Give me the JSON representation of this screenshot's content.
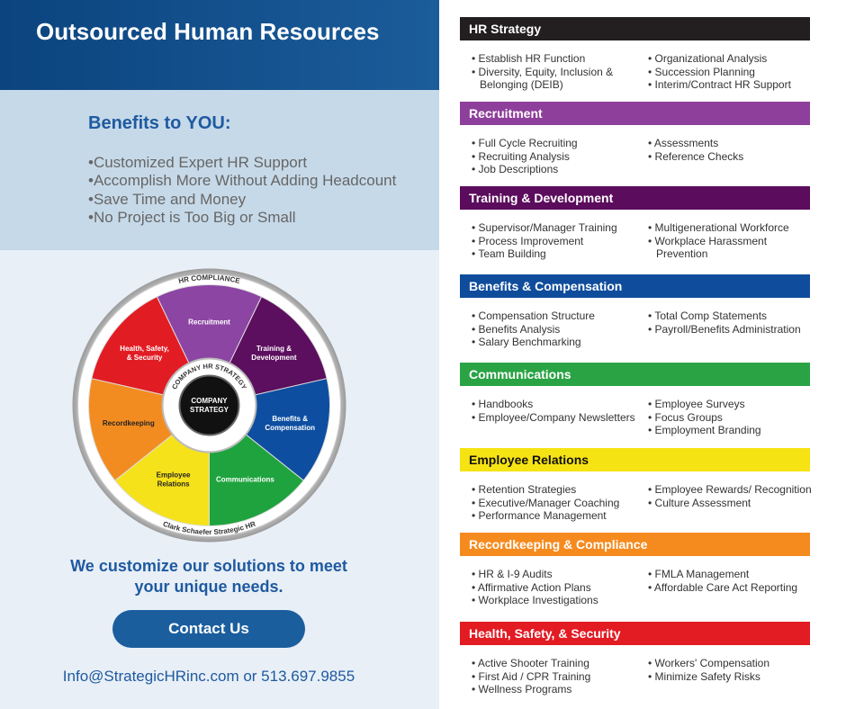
{
  "header": {
    "title": "Outsourced Human Resources"
  },
  "benefits": {
    "title": "Benefits to YOU:",
    "items": [
      "Customized Expert HR Support",
      "Accomplish More Without Adding Headcount",
      "Save Time and Money",
      "No Project is Too Big or Small"
    ]
  },
  "wheel": {
    "outer_top": "HR COMPLIANCE",
    "outer_bottom": "Clark Schaefer Strategic HR",
    "inner_ring": "COMPANY HR STRATEGY",
    "center": [
      "COMPANY",
      "STRATEGY"
    ],
    "segments": [
      {
        "lines": [
          "Recruitment"
        ]
      },
      {
        "lines": [
          "Training &",
          "Development"
        ]
      },
      {
        "lines": [
          "Benefits &",
          "Compensation"
        ]
      },
      {
        "lines": [
          "Communications"
        ]
      },
      {
        "lines": [
          "Employee",
          "Relations"
        ]
      },
      {
        "lines": [
          "Recordkeeping"
        ]
      },
      {
        "lines": [
          "Health, Safety,",
          "& Security"
        ]
      }
    ]
  },
  "tagline": [
    "We customize our solutions to meet",
    "your unique needs."
  ],
  "button": "Contact Us",
  "contact": "Info@StrategicHRinc.com or 513.697.9855",
  "services": [
    {
      "title": "HR Strategy",
      "left": [
        "Establish HR Function",
        "Diversity, Equity, Inclusion & Belonging (DEIB)"
      ],
      "right": [
        "Organizational Analysis",
        "Succession Planning",
        "Interim/Contract HR Support"
      ]
    },
    {
      "title": "Recruitment",
      "left": [
        "Full Cycle Recruiting",
        "Recruiting Analysis",
        "Job Descriptions"
      ],
      "right": [
        "Assessments",
        "Reference Checks"
      ]
    },
    {
      "title": "Training & Development",
      "left": [
        "Supervisor/Manager Training",
        "Process Improvement",
        "Team Building"
      ],
      "right": [
        "Multigenerational Workforce",
        "Workplace Harassment Prevention"
      ]
    },
    {
      "title": "Benefits & Compensation",
      "left": [
        "Compensation Structure",
        "Benefits Analysis",
        "Salary Benchmarking"
      ],
      "right": [
        "Total Comp Statements",
        "Payroll/Benefits Administration"
      ]
    },
    {
      "title": "Communications",
      "left": [
        "Handbooks",
        "Employee/Company Newsletters"
      ],
      "right": [
        "Employee Surveys",
        "Focus Groups",
        "Employment Branding"
      ]
    },
    {
      "title": "Employee Relations",
      "left": [
        "Retention Strategies",
        "Executive/Manager Coaching",
        "Performance Management"
      ],
      "right": [
        "Employee Rewards/ Recognition",
        "Culture Assessment"
      ]
    },
    {
      "title": "Recordkeeping & Compliance",
      "left": [
        "HR & I-9 Audits",
        "Affirmative Action Plans",
        "Workplace Investigations"
      ],
      "right": [
        "FMLA Management",
        "Affordable Care Act Reporting"
      ]
    },
    {
      "title": "Health, Safety, & Security",
      "left": [
        "Active Shooter Training",
        "First Aid / CPR Training",
        "Wellness Programs"
      ],
      "right": [
        "Workers' Compensation",
        "Minimize Safety Risks"
      ]
    }
  ]
}
